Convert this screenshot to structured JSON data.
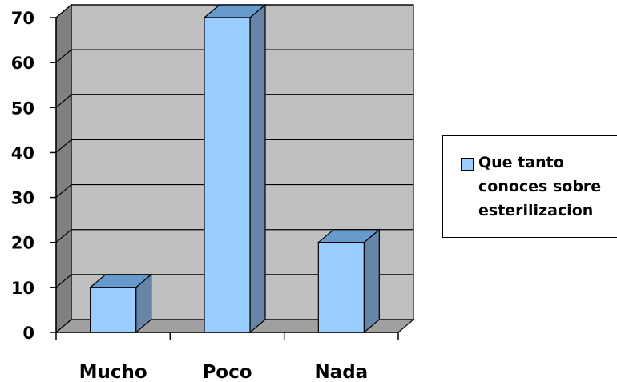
{
  "chart_data": {
    "type": "bar",
    "style": "3d-column",
    "categories": [
      "Mucho",
      "Poco",
      "Nada"
    ],
    "series": [
      {
        "name": "Que tanto conoces sobre esterilizacion",
        "values": [
          10,
          70,
          20
        ],
        "color": "#99ccff"
      }
    ],
    "ylim": [
      0,
      70
    ],
    "yticks": [
      0,
      10,
      20,
      30,
      40,
      50,
      60,
      70
    ],
    "grid": true,
    "legend_placement": "right",
    "legend_lines": [
      "Que tanto",
      "conoces sobre",
      "esterilizacion"
    ],
    "colors": {
      "bar_front": "#99ccff",
      "bar_top": "#6699cc",
      "bar_side": "#6685a8",
      "wall": "#c0c0c0",
      "wall_left": "#808080",
      "floor": "#a0a0a0"
    }
  }
}
